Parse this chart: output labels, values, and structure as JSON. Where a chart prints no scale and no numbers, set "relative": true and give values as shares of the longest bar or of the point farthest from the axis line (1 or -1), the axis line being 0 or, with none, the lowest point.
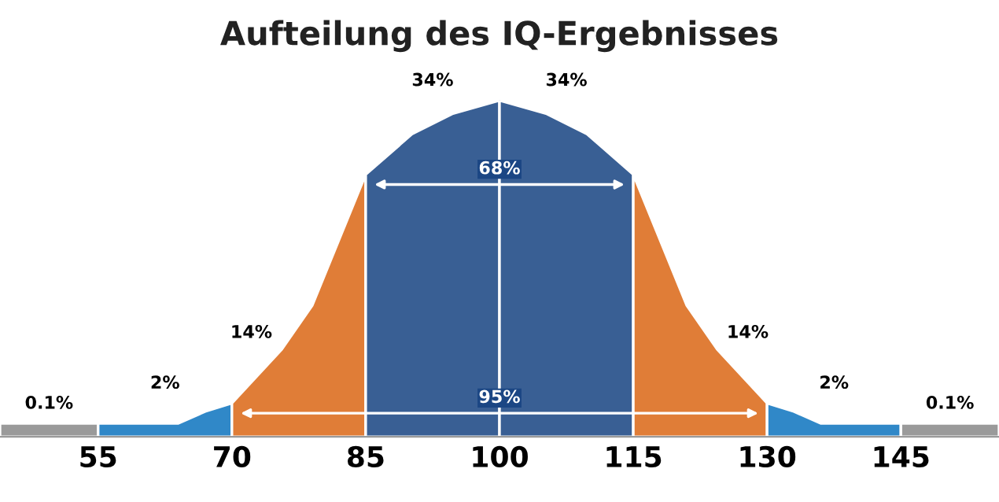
{
  "chart_data": {
    "type": "area",
    "title": "Aufteilung des IQ-Ergebnisses",
    "relative": true,
    "xlim": [
      44,
      156
    ],
    "xticks": [
      55,
      70,
      85,
      100,
      115,
      130,
      145
    ],
    "grid": false,
    "legend": false,
    "series": [
      {
        "color": "#9a9a9a",
        "x": [
          44,
          55
        ],
        "values": [
          0.04,
          0.04
        ]
      },
      {
        "color": "#3088c8",
        "x": [
          55,
          64,
          67,
          70
        ],
        "values": [
          0.04,
          0.04,
          0.075,
          0.1
        ]
      },
      {
        "color": "#de7428",
        "x": [
          70,
          75.6,
          79,
          85
        ],
        "values": [
          0.1,
          0.26,
          0.39,
          0.78
        ]
      },
      {
        "color": "#1b4684",
        "x": [
          85,
          90.2,
          94.7,
          100
        ],
        "values": [
          0.78,
          0.9,
          0.96,
          1
        ]
      },
      {
        "color": "#1b4684",
        "x": [
          100,
          105.3,
          109.8,
          115
        ],
        "values": [
          1,
          0.96,
          0.9,
          0.78
        ]
      },
      {
        "color": "#de7428",
        "x": [
          115,
          121,
          124.4,
          130
        ],
        "values": [
          0.78,
          0.39,
          0.26,
          0.1
        ]
      },
      {
        "color": "#3088c8",
        "x": [
          130,
          133,
          136,
          145
        ],
        "values": [
          0.1,
          0.075,
          0.04,
          0.04
        ]
      },
      {
        "color": "#9a9a9a",
        "x": [
          145,
          156
        ],
        "values": [
          0.04,
          0.04
        ]
      }
    ],
    "bands": [
      {
        "axis": "x",
        "from": 85,
        "to": 115,
        "label": "68%"
      },
      {
        "axis": "x",
        "from": 70,
        "to": 130,
        "label": "95%"
      }
    ],
    "annotations": [
      "0.1%",
      "2%",
      "14%",
      "34%",
      "34%",
      "14%",
      "2%",
      "0.1%"
    ]
  }
}
